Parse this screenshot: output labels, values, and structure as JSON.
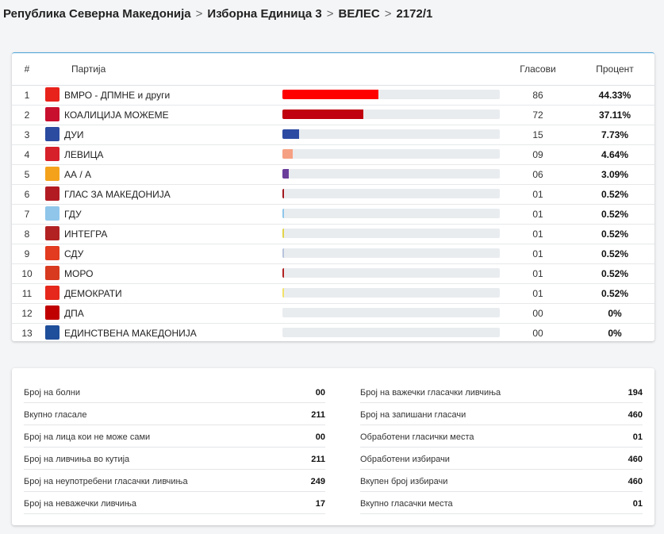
{
  "breadcrumb": [
    "Република Северна Македонија",
    "Изборна Единица 3",
    "ВЕЛЕС",
    "2172/1"
  ],
  "table": {
    "headers": {
      "num": "#",
      "party": "Партија",
      "votes": "Гласови",
      "percent": "Процент"
    },
    "rows": [
      {
        "num": "1",
        "name": "ВМРО - ДПМНЕ и други",
        "votes": "86",
        "percent": "44.33%",
        "share": 0.4433,
        "color": "#ff0000",
        "logo": "vmro-logo-icon",
        "logo_color": "#e8231b"
      },
      {
        "num": "2",
        "name": "КОАЛИЦИЈА МОЖЕМЕ",
        "votes": "72",
        "percent": "37.11%",
        "share": 0.3711,
        "color": "#c0000e",
        "logo": "mozeme-logo-icon",
        "logo_color": "#c8102e"
      },
      {
        "num": "3",
        "name": "ДУИ",
        "votes": "15",
        "percent": "7.73%",
        "share": 0.0773,
        "color": "#2d4aa3",
        "logo": "dui-logo-icon",
        "logo_color": "#2b4ba0"
      },
      {
        "num": "4",
        "name": "ЛЕВИЦА",
        "votes": "09",
        "percent": "4.64%",
        "share": 0.0464,
        "color": "#f6a083",
        "logo": "levica-logo-icon",
        "logo_color": "#d6202a"
      },
      {
        "num": "5",
        "name": "АА / А",
        "votes": "06",
        "percent": "3.09%",
        "share": 0.0309,
        "color": "#6a3d9a",
        "logo": "aa-logo-icon",
        "logo_color": "#f4a21c"
      },
      {
        "num": "6",
        "name": "ГЛАС ЗА МАКЕДОНИЈА",
        "votes": "01",
        "percent": "0.52%",
        "share": 0.0052,
        "color": "#a31820",
        "logo": "glas-logo-icon",
        "logo_color": "#b31b23"
      },
      {
        "num": "7",
        "name": "ГДУ",
        "votes": "01",
        "percent": "0.52%",
        "share": 0.0052,
        "color": "#8fc6ea",
        "logo": "gdu-logo-icon",
        "logo_color": "#8fc6ea"
      },
      {
        "num": "8",
        "name": "ИНТЕГРА",
        "votes": "01",
        "percent": "0.52%",
        "share": 0.0052,
        "color": "#e2d34a",
        "logo": "integra-logo-icon",
        "logo_color": "#b22222"
      },
      {
        "num": "9",
        "name": "СДУ",
        "votes": "01",
        "percent": "0.52%",
        "share": 0.0052,
        "color": "#b8c4dc",
        "logo": "sdu-logo-icon",
        "logo_color": "#e23b1f"
      },
      {
        "num": "10",
        "name": "МОРО",
        "votes": "01",
        "percent": "0.52%",
        "share": 0.0052,
        "color": "#b22222",
        "logo": "moro-logo-icon",
        "logo_color": "#d73a1f"
      },
      {
        "num": "11",
        "name": "ДЕМОКРАТИ",
        "votes": "01",
        "percent": "0.52%",
        "share": 0.0052,
        "color": "#f1e16a",
        "logo": "demokrati-logo-icon",
        "logo_color": "#e5281b"
      },
      {
        "num": "12",
        "name": "ДПА",
        "votes": "00",
        "percent": "0%",
        "share": 0,
        "color": "#cc0000",
        "logo": "dpa-logo-icon",
        "logo_color": "#c00000"
      },
      {
        "num": "13",
        "name": "ЕДИНСТВЕНА МАКЕДОНИЈА",
        "votes": "00",
        "percent": "0%",
        "share": 0,
        "color": "#1f4e9a",
        "logo": "edinstvena-logo-icon",
        "logo_color": "#1f4e9a"
      }
    ]
  },
  "stats": {
    "left": [
      {
        "label": "Број на болни",
        "value": "00"
      },
      {
        "label": "Вкупно гласале",
        "value": "211"
      },
      {
        "label": "Број на лица кои не може сами",
        "value": "00"
      },
      {
        "label": "Број на ливчиња во кутија",
        "value": "211"
      },
      {
        "label": "Број на неупотребени гласачки ливчиња",
        "value": "249"
      },
      {
        "label": "Број на неважечки ливчиња",
        "value": "17"
      }
    ],
    "right": [
      {
        "label": "Број на важечки гласачки ливчиња",
        "value": "194"
      },
      {
        "label": "Број на запишани гласачи",
        "value": "460"
      },
      {
        "label": "Обработени гласички места",
        "value": "01"
      },
      {
        "label": "Обработени избирачи",
        "value": "460"
      },
      {
        "label": "Вкупен број избирачи",
        "value": "460"
      },
      {
        "label": "Вкупно гласачки места",
        "value": "01"
      }
    ]
  }
}
